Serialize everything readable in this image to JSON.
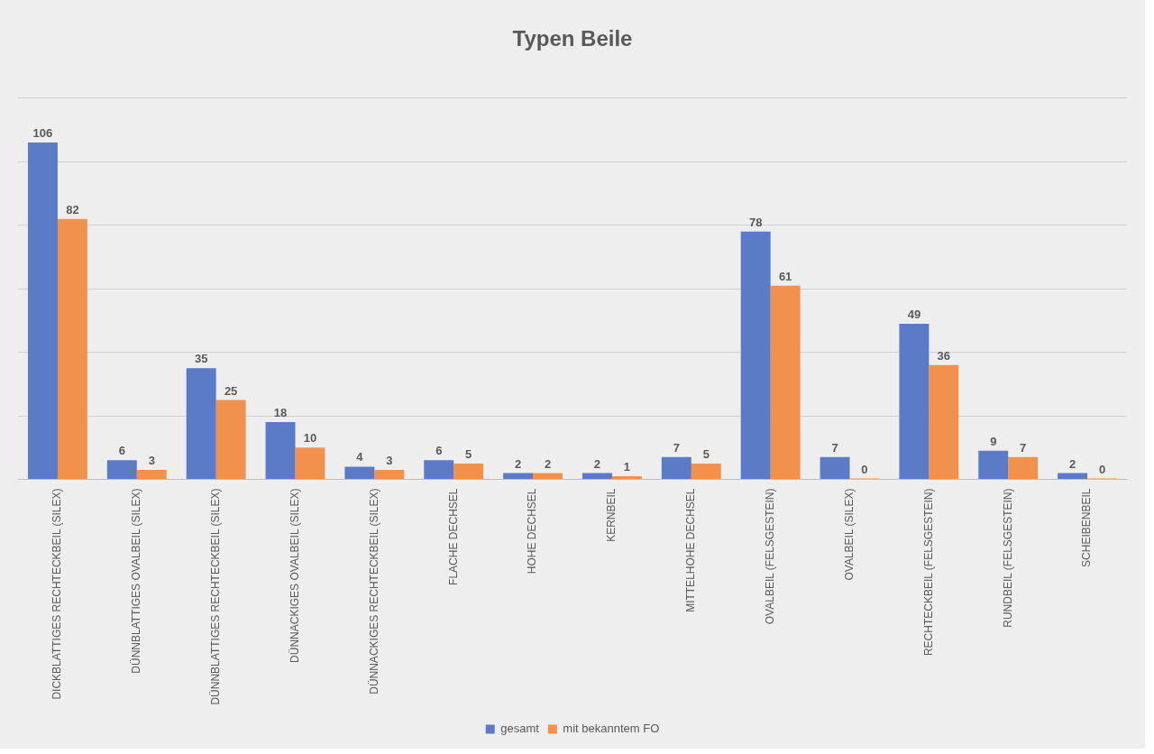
{
  "chart_data": {
    "type": "bar",
    "title": "Typen Beile",
    "categories": [
      "DICKBLATTIGES RECHTECKBEIL (SILEX)",
      "DÜNNBLATTIGES OVALBEIL (SILEX)",
      "DÜNNBLATTIGES RECHTECKBEIL (SILEX)",
      "DÜNNACKIGES OVALBEIL (SILEX)",
      "DÜNNACKIGES RECHTECKBEIL (SILEX)",
      "FLACHE DECHSEL",
      "HOHE DECHSEL",
      "KERNBEIL",
      "MITTELHOHE DECHSEL",
      "OVALBEIL (FELSGESTEIN)",
      "OVALBEIL (SILEX)",
      "RECHTECKBEIL (FELSGESTEIN)",
      "RUNDBEIL (FELSGESTEIN)",
      "SCHEIBENBEIL"
    ],
    "series": [
      {
        "name": "gesamt",
        "color": "#5b7bc6",
        "values": [
          106,
          6,
          35,
          18,
          4,
          6,
          2,
          2,
          7,
          78,
          7,
          49,
          9,
          2
        ]
      },
      {
        "name": "mit bekanntem FO",
        "color": "#f0914e",
        "values": [
          82,
          3,
          25,
          10,
          3,
          5,
          2,
          1,
          5,
          61,
          0,
          36,
          7,
          0
        ]
      }
    ],
    "ylim": [
      0,
      120
    ],
    "yticks": [
      {
        "value": 0,
        "label": null
      },
      {
        "value": 20,
        "label": null
      },
      {
        "value": 40,
        "label": null
      },
      {
        "value": 60,
        "label": null
      },
      {
        "value": 80,
        "label": null
      },
      {
        "value": 100,
        "label": null
      },
      {
        "value": 120,
        "label": null
      }
    ],
    "tick_labels": "x",
    "grid": "y",
    "legend": "bottom",
    "data_labels": true
  }
}
